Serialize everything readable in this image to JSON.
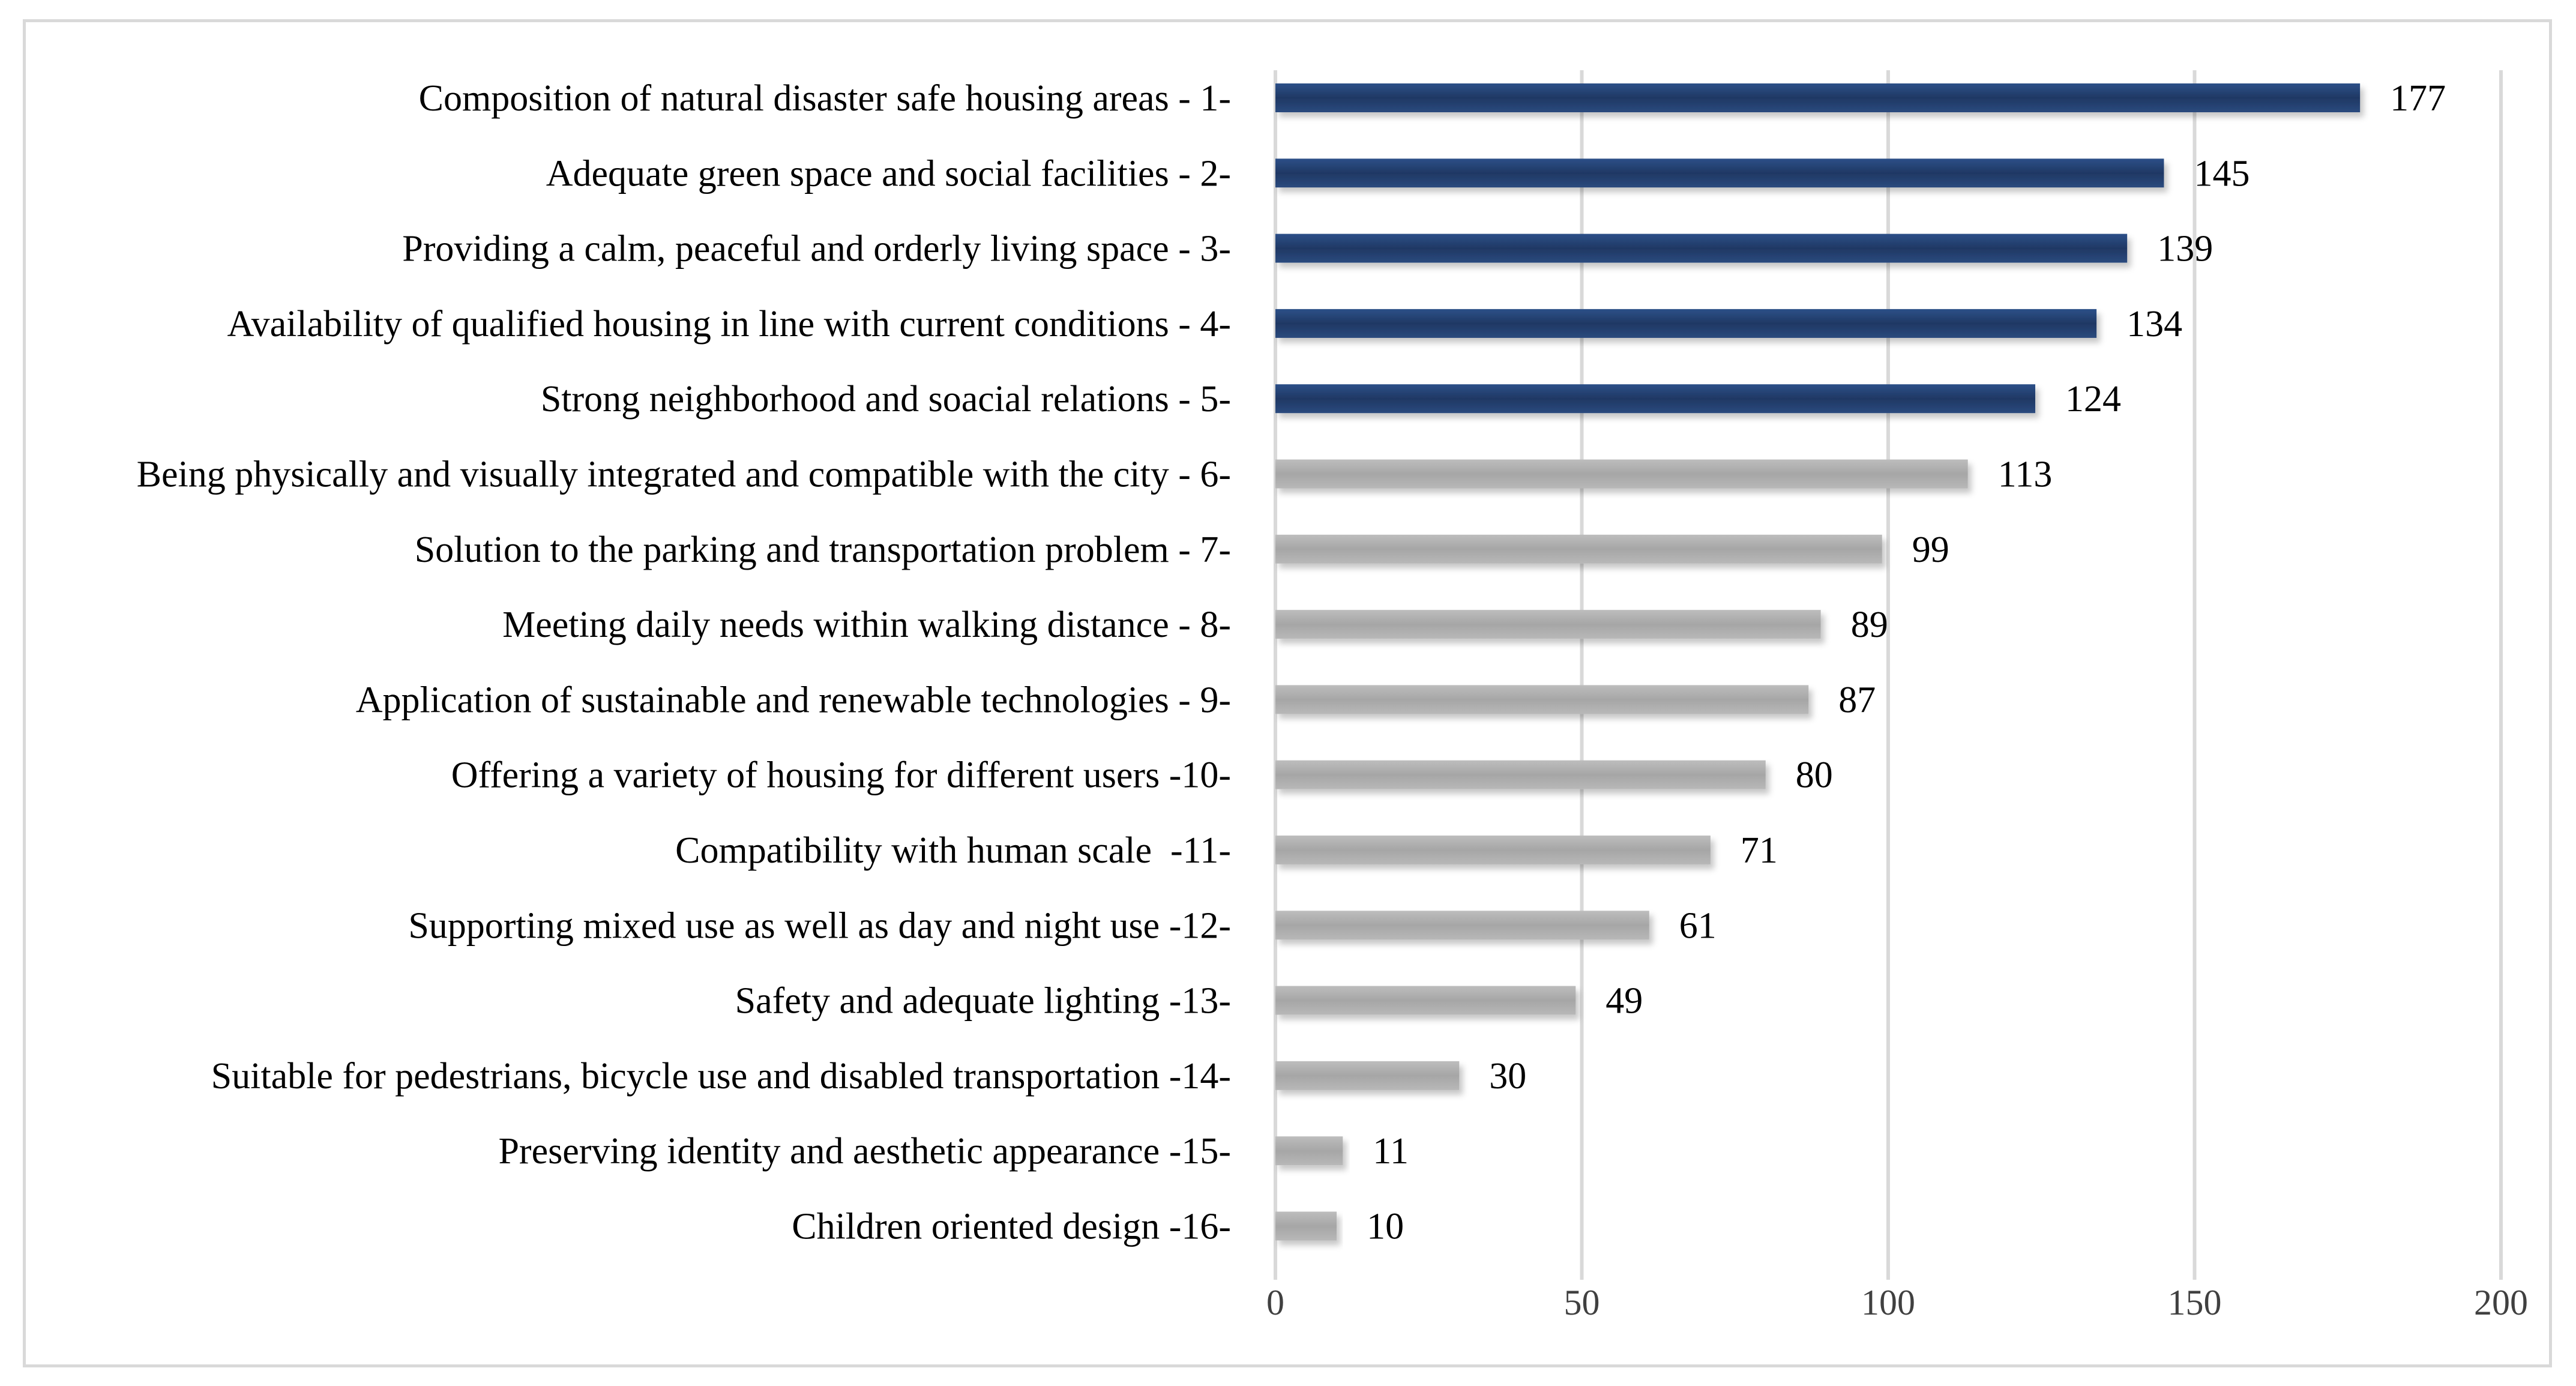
{
  "chart_data": {
    "type": "bar",
    "orientation": "horizontal",
    "title": "",
    "xlabel": "",
    "ylabel": "",
    "xlim": [
      0,
      200
    ],
    "x_ticks": [
      0,
      50,
      100,
      150,
      200
    ],
    "grid": true,
    "categories": [
      "Composition of natural disaster safe housing areas - 1-",
      "Adequate green space and social facilities - 2-",
      "Providing a calm, peaceful and orderly living space - 3-",
      "Availability of qualified housing in line with current conditions - 4-",
      "Strong neighborhood and soacial relations - 5-",
      "Being physically and visually integrated and compatible with the city - 6-",
      "Solution to the parking and transportation problem - 7-",
      "Meeting daily needs within walking distance - 8-",
      "Application of sustainable and renewable technologies - 9-",
      "Offering a variety of housing for different users -10-",
      "Compatibility with human scale  -11-",
      "Supporting mixed use as well as day and night use -12-",
      "Safety and adequate lighting -13-",
      "Suitable for pedestrians, bicycle use and disabled transportation -14-",
      "Preserving identity and aesthetic appearance -15-",
      "Children oriented design -16-"
    ],
    "values": [
      177,
      145,
      139,
      134,
      124,
      113,
      99,
      89,
      87,
      80,
      71,
      61,
      49,
      30,
      11,
      10
    ],
    "highlight_count": 5,
    "colors": {
      "highlight": "#1f3864",
      "highlight_light": "#3f6298",
      "default": "#a6a6a6",
      "default_light": "#d0d0d0"
    }
  }
}
